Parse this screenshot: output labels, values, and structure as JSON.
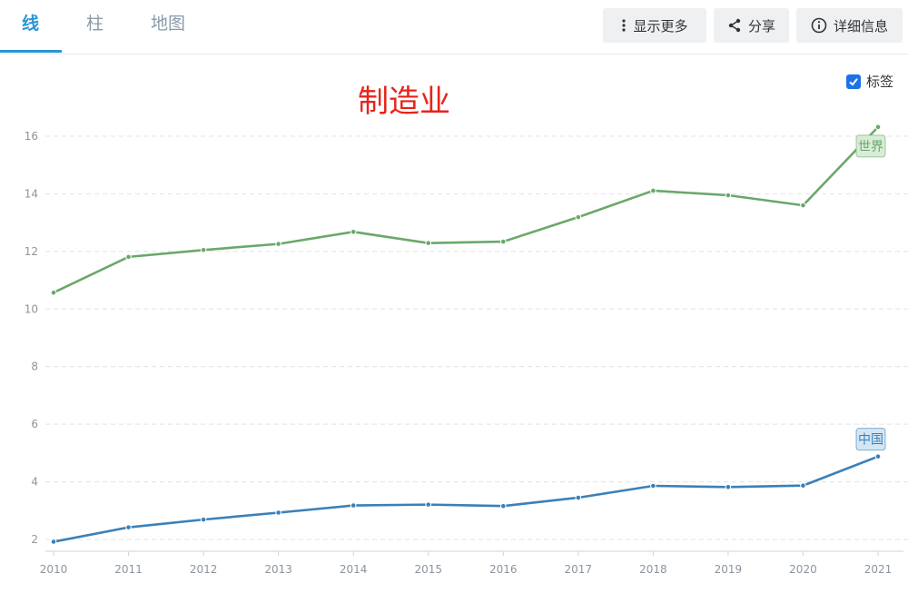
{
  "tabs": [
    {
      "label": "线",
      "active": true
    },
    {
      "label": "柱",
      "active": false
    },
    {
      "label": "地图",
      "active": false
    }
  ],
  "toolbar": {
    "more_label": "显示更多",
    "share_label": "分享",
    "info_label": "详细信息",
    "icons": [
      "more-vertical-icon",
      "share-icon",
      "info-icon"
    ]
  },
  "legend_toggle": {
    "label": "标签",
    "checked": true
  },
  "chart_data": {
    "type": "line",
    "title": "制造业",
    "xlabel": "",
    "ylabel": "",
    "x": [
      "2010",
      "2011",
      "2012",
      "2013",
      "2014",
      "2015",
      "2016",
      "2017",
      "2018",
      "2019",
      "2020",
      "2021"
    ],
    "ylim": [
      1.7,
      17
    ],
    "yticks": [
      2,
      4,
      6,
      8,
      10,
      12,
      14,
      16
    ],
    "grid": true,
    "series": [
      {
        "name": "世界",
        "color": "#6aa86a",
        "label_bg": "#d8ecd8",
        "values": [
          10.57,
          11.81,
          12.05,
          12.26,
          12.68,
          12.29,
          12.34,
          13.19,
          14.11,
          13.95,
          13.6,
          16.32
        ]
      },
      {
        "name": "中国",
        "color": "#3b80b8",
        "label_bg": "#d4e6f4",
        "values": [
          1.92,
          2.42,
          2.69,
          2.93,
          3.18,
          3.21,
          3.16,
          3.45,
          3.86,
          3.82,
          3.87,
          4.88
        ]
      }
    ]
  }
}
